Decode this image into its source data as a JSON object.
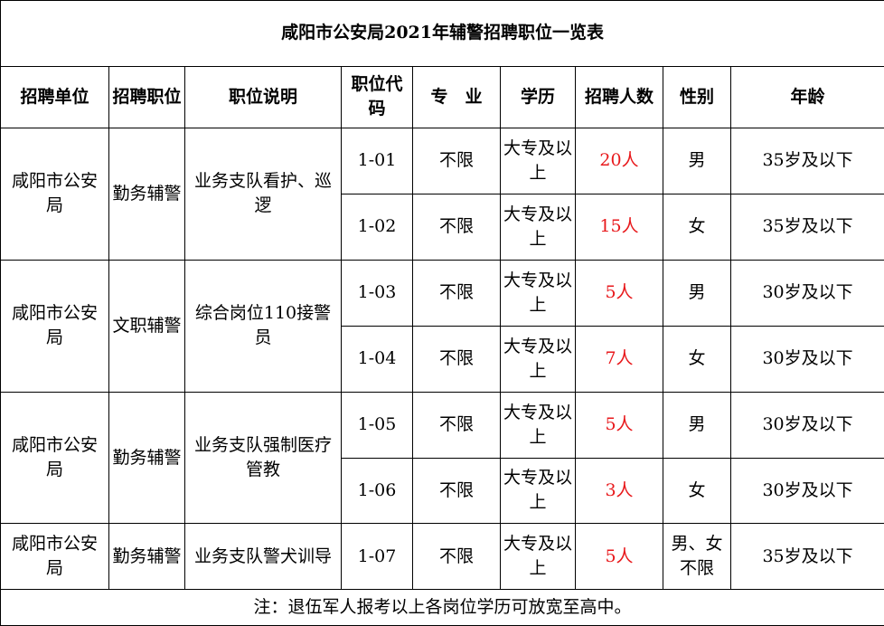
{
  "title": "咸阳市公安局2021年辅警招聘职位一览表",
  "headers": [
    "招聘单位",
    "招聘职位",
    "职位说明",
    "职位代码",
    "专　业",
    "学历",
    "招聘人数",
    "性别",
    "年龄"
  ],
  "groups": [
    {
      "unit": "咸阳市公安局",
      "position": "勤务辅警",
      "description": "业务支队看护、巡逻",
      "rows": [
        {
          "code": "1-01",
          "major": "不限",
          "education": "大专及以上",
          "count": "20人",
          "gender": "男",
          "age": "35岁及以下"
        },
        {
          "code": "1-02",
          "major": "不限",
          "education": "大专及以上",
          "count": "15人",
          "gender": "女",
          "age": "35岁及以下"
        }
      ]
    },
    {
      "unit": "咸阳市公安局",
      "position": "文职辅警",
      "description": "综合岗位110接警员",
      "rows": [
        {
          "code": "1-03",
          "major": "不限",
          "education": "大专及以上",
          "count": "5人",
          "gender": "男",
          "age": "30岁及以下"
        },
        {
          "code": "1-04",
          "major": "不限",
          "education": "大专及以上",
          "count": "7人",
          "gender": "女",
          "age": "30岁及以下"
        }
      ]
    },
    {
      "unit": "咸阳市公安局",
      "position": "勤务辅警",
      "description": "业务支队强制医疗管教",
      "rows": [
        {
          "code": "1-05",
          "major": "不限",
          "education": "大专及以上",
          "count": "5人",
          "gender": "男",
          "age": "30岁及以下"
        },
        {
          "code": "1-06",
          "major": "不限",
          "education": "大专及以上",
          "count": "3人",
          "gender": "女",
          "age": "30岁及以下"
        }
      ]
    },
    {
      "unit": "咸阳市公安局",
      "position": "勤务辅警",
      "description": "业务支队警犬训导",
      "rows": [
        {
          "code": "1-07",
          "major": "不限",
          "education": "大专及以上",
          "count": "5人",
          "gender": "男、女不限",
          "age": "35岁及以下"
        }
      ]
    }
  ],
  "note": "注：退伍军人报考以上各岗位学历可放宽至高中。",
  "colors": {
    "count_text": "#e8191c",
    "border": "#000000"
  }
}
